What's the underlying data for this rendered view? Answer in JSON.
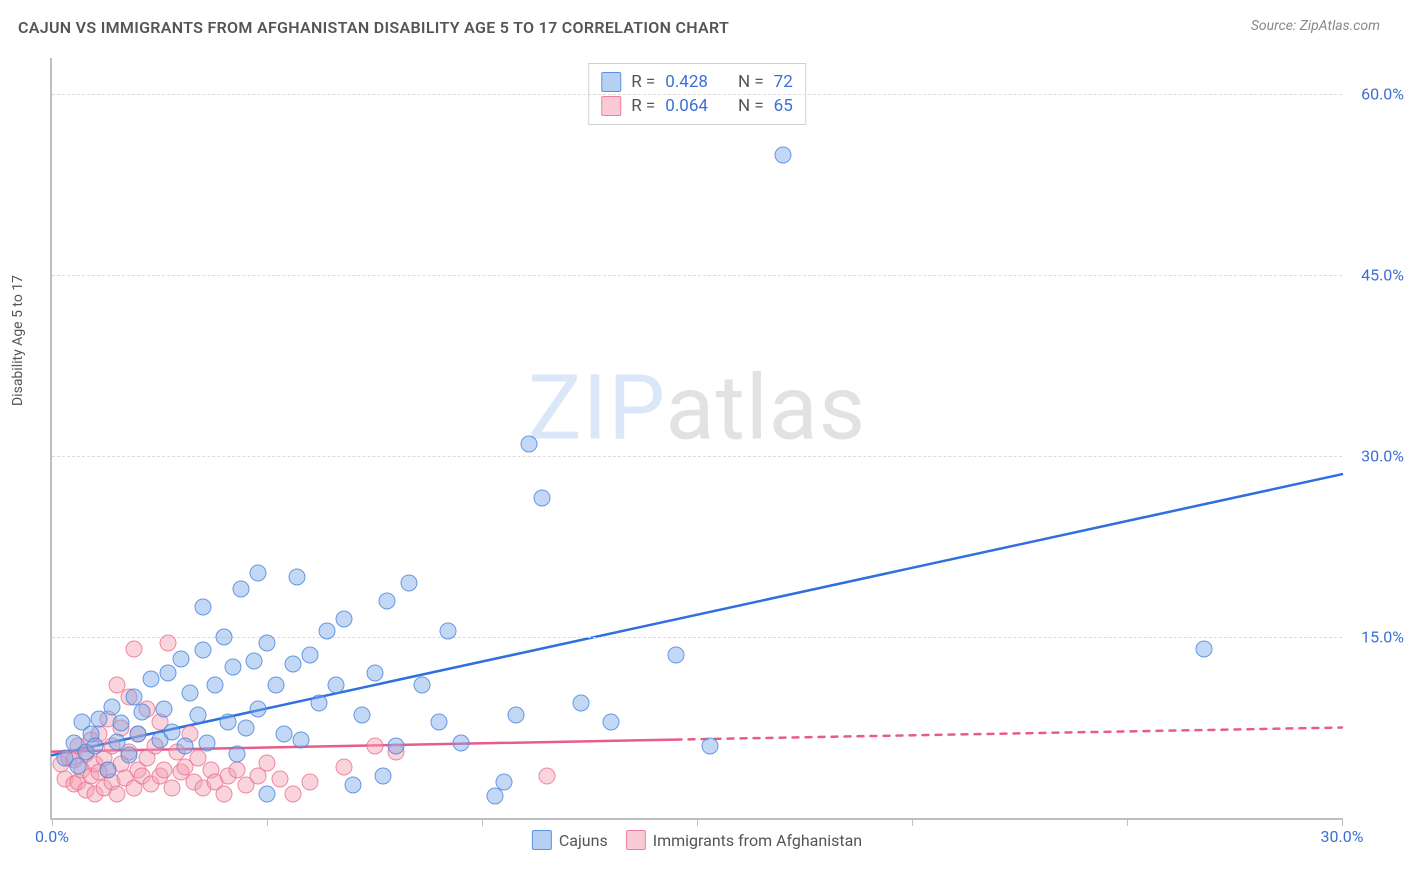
{
  "title": "CAJUN VS IMMIGRANTS FROM AFGHANISTAN DISABILITY AGE 5 TO 17 CORRELATION CHART",
  "source": "Source: ZipAtlas.com",
  "y_axis_title": "Disability Age 5 to 17",
  "watermark_a": "ZIP",
  "watermark_b": "atlas",
  "chart": {
    "type": "scatter",
    "xlim": [
      0,
      30
    ],
    "ylim": [
      0,
      63
    ],
    "x_ticks": [
      0,
      5,
      10,
      15,
      20,
      25,
      30
    ],
    "x_tick_labels": {
      "0": "0.0%",
      "30": "30.0%"
    },
    "y_gridlines": [
      15,
      30,
      45,
      60
    ],
    "y_tick_labels": {
      "15": "15.0%",
      "30": "30.0%",
      "45": "45.0%",
      "60": "60.0%"
    },
    "background_color": "#ffffff",
    "grid_color": "#dcdcdc",
    "axis_color": "#bfbfbf",
    "label_color": "#3b6fd6",
    "marker_size": 17,
    "series": [
      {
        "name": "Cajuns",
        "color_fill": "rgba(120,169,233,0.45)",
        "color_stroke": "rgba(70,130,220,0.75)",
        "R": "0.428",
        "N": "72",
        "trend": {
          "solid_from": [
            0,
            5.2
          ],
          "solid_to": [
            30,
            28.5
          ],
          "stroke": "#2f6fe0",
          "width": 2.5
        },
        "points": [
          [
            0.3,
            5.0
          ],
          [
            0.5,
            6.2
          ],
          [
            0.6,
            4.3
          ],
          [
            0.7,
            8.0
          ],
          [
            0.8,
            5.5
          ],
          [
            0.9,
            7.0
          ],
          [
            1.0,
            6.0
          ],
          [
            1.1,
            8.2
          ],
          [
            1.3,
            4.0
          ],
          [
            1.4,
            9.2
          ],
          [
            1.5,
            6.3
          ],
          [
            1.6,
            7.9
          ],
          [
            1.8,
            5.2
          ],
          [
            1.9,
            10.0
          ],
          [
            2.0,
            7.0
          ],
          [
            2.1,
            8.8
          ],
          [
            2.3,
            11.5
          ],
          [
            2.5,
            6.5
          ],
          [
            2.6,
            9.0
          ],
          [
            2.7,
            12.0
          ],
          [
            2.8,
            7.1
          ],
          [
            3.0,
            13.2
          ],
          [
            3.1,
            6.0
          ],
          [
            3.2,
            10.4
          ],
          [
            3.4,
            8.5
          ],
          [
            3.5,
            13.9
          ],
          [
            3.5,
            17.5
          ],
          [
            3.6,
            6.2
          ],
          [
            3.8,
            11.0
          ],
          [
            4.0,
            15.0
          ],
          [
            4.1,
            8.0
          ],
          [
            4.2,
            12.5
          ],
          [
            4.3,
            5.3
          ],
          [
            4.4,
            19.0
          ],
          [
            4.5,
            7.5
          ],
          [
            4.7,
            13.0
          ],
          [
            4.8,
            9.0
          ],
          [
            4.8,
            20.3
          ],
          [
            5.0,
            2.0
          ],
          [
            5.0,
            14.5
          ],
          [
            5.2,
            11.0
          ],
          [
            5.4,
            7.0
          ],
          [
            5.6,
            12.8
          ],
          [
            5.7,
            20.0
          ],
          [
            5.8,
            6.5
          ],
          [
            6.0,
            13.5
          ],
          [
            6.2,
            9.5
          ],
          [
            6.4,
            15.5
          ],
          [
            6.6,
            11.0
          ],
          [
            6.8,
            16.5
          ],
          [
            7.0,
            2.7
          ],
          [
            7.2,
            8.5
          ],
          [
            7.5,
            12.0
          ],
          [
            7.7,
            3.5
          ],
          [
            7.8,
            18.0
          ],
          [
            8.0,
            6.0
          ],
          [
            8.3,
            19.5
          ],
          [
            8.6,
            11.0
          ],
          [
            9.0,
            8.0
          ],
          [
            9.2,
            15.5
          ],
          [
            9.5,
            6.2
          ],
          [
            10.3,
            1.8
          ],
          [
            10.5,
            3.0
          ],
          [
            10.8,
            8.5
          ],
          [
            11.1,
            31.0
          ],
          [
            11.4,
            26.5
          ],
          [
            12.3,
            9.5
          ],
          [
            13.0,
            8.0
          ],
          [
            14.5,
            13.5
          ],
          [
            15.3,
            6.0
          ],
          [
            17.0,
            55.0
          ],
          [
            26.8,
            14.0
          ]
        ]
      },
      {
        "name": "Immigrants from Afghanistan",
        "color_fill": "rgba(245,160,180,0.45)",
        "color_stroke": "rgba(235,110,140,0.75)",
        "R": "0.064",
        "N": "65",
        "trend": {
          "solid_from": [
            0,
            5.5
          ],
          "solid_to": [
            14.5,
            6.5
          ],
          "dash_from": [
            14.5,
            6.5
          ],
          "dash_to": [
            30,
            7.5
          ],
          "stroke": "#e85c8a",
          "width": 2.5
        },
        "points": [
          [
            0.2,
            4.5
          ],
          [
            0.3,
            3.2
          ],
          [
            0.4,
            5.0
          ],
          [
            0.5,
            2.8
          ],
          [
            0.5,
            4.8
          ],
          [
            0.6,
            6.0
          ],
          [
            0.6,
            3.0
          ],
          [
            0.7,
            4.0
          ],
          [
            0.8,
            5.3
          ],
          [
            0.8,
            2.3
          ],
          [
            0.9,
            6.5
          ],
          [
            0.9,
            3.5
          ],
          [
            1.0,
            4.5
          ],
          [
            1.0,
            2.0
          ],
          [
            1.1,
            7.0
          ],
          [
            1.1,
            3.8
          ],
          [
            1.2,
            5.0
          ],
          [
            1.2,
            2.5
          ],
          [
            1.3,
            8.2
          ],
          [
            1.3,
            4.0
          ],
          [
            1.4,
            6.0
          ],
          [
            1.4,
            3.0
          ],
          [
            1.5,
            2.0
          ],
          [
            1.5,
            11.0
          ],
          [
            1.6,
            4.5
          ],
          [
            1.6,
            7.5
          ],
          [
            1.7,
            3.3
          ],
          [
            1.8,
            5.5
          ],
          [
            1.8,
            10.0
          ],
          [
            1.9,
            2.5
          ],
          [
            1.9,
            14.0
          ],
          [
            2.0,
            4.0
          ],
          [
            2.0,
            7.0
          ],
          [
            2.1,
            3.5
          ],
          [
            2.2,
            9.0
          ],
          [
            2.2,
            5.0
          ],
          [
            2.3,
            2.8
          ],
          [
            2.4,
            6.0
          ],
          [
            2.5,
            3.5
          ],
          [
            2.5,
            8.0
          ],
          [
            2.6,
            4.0
          ],
          [
            2.7,
            14.5
          ],
          [
            2.8,
            2.5
          ],
          [
            2.9,
            5.5
          ],
          [
            3.0,
            3.8
          ],
          [
            3.1,
            4.2
          ],
          [
            3.2,
            7.0
          ],
          [
            3.3,
            3.0
          ],
          [
            3.4,
            5.0
          ],
          [
            3.5,
            2.5
          ],
          [
            3.7,
            4.0
          ],
          [
            3.8,
            3.0
          ],
          [
            4.0,
            2.0
          ],
          [
            4.1,
            3.5
          ],
          [
            4.3,
            4.0
          ],
          [
            4.5,
            2.7
          ],
          [
            4.8,
            3.5
          ],
          [
            5.0,
            4.6
          ],
          [
            5.3,
            3.2
          ],
          [
            5.6,
            2.0
          ],
          [
            6.0,
            3.0
          ],
          [
            6.8,
            4.2
          ],
          [
            7.5,
            6.0
          ],
          [
            8.0,
            5.5
          ],
          [
            11.5,
            3.5
          ]
        ]
      }
    ]
  },
  "legend_top": {
    "rows": [
      {
        "swatch": "blue",
        "r_label": "R =",
        "r_val": "0.428",
        "n_label": "N =",
        "n_val": "72"
      },
      {
        "swatch": "pink",
        "r_label": "R =",
        "r_val": "0.064",
        "n_label": "N =",
        "n_val": "65"
      }
    ]
  },
  "legend_bottom": {
    "items": [
      {
        "swatch": "blue",
        "label": "Cajuns"
      },
      {
        "swatch": "pink",
        "label": "Immigrants from Afghanistan"
      }
    ]
  }
}
